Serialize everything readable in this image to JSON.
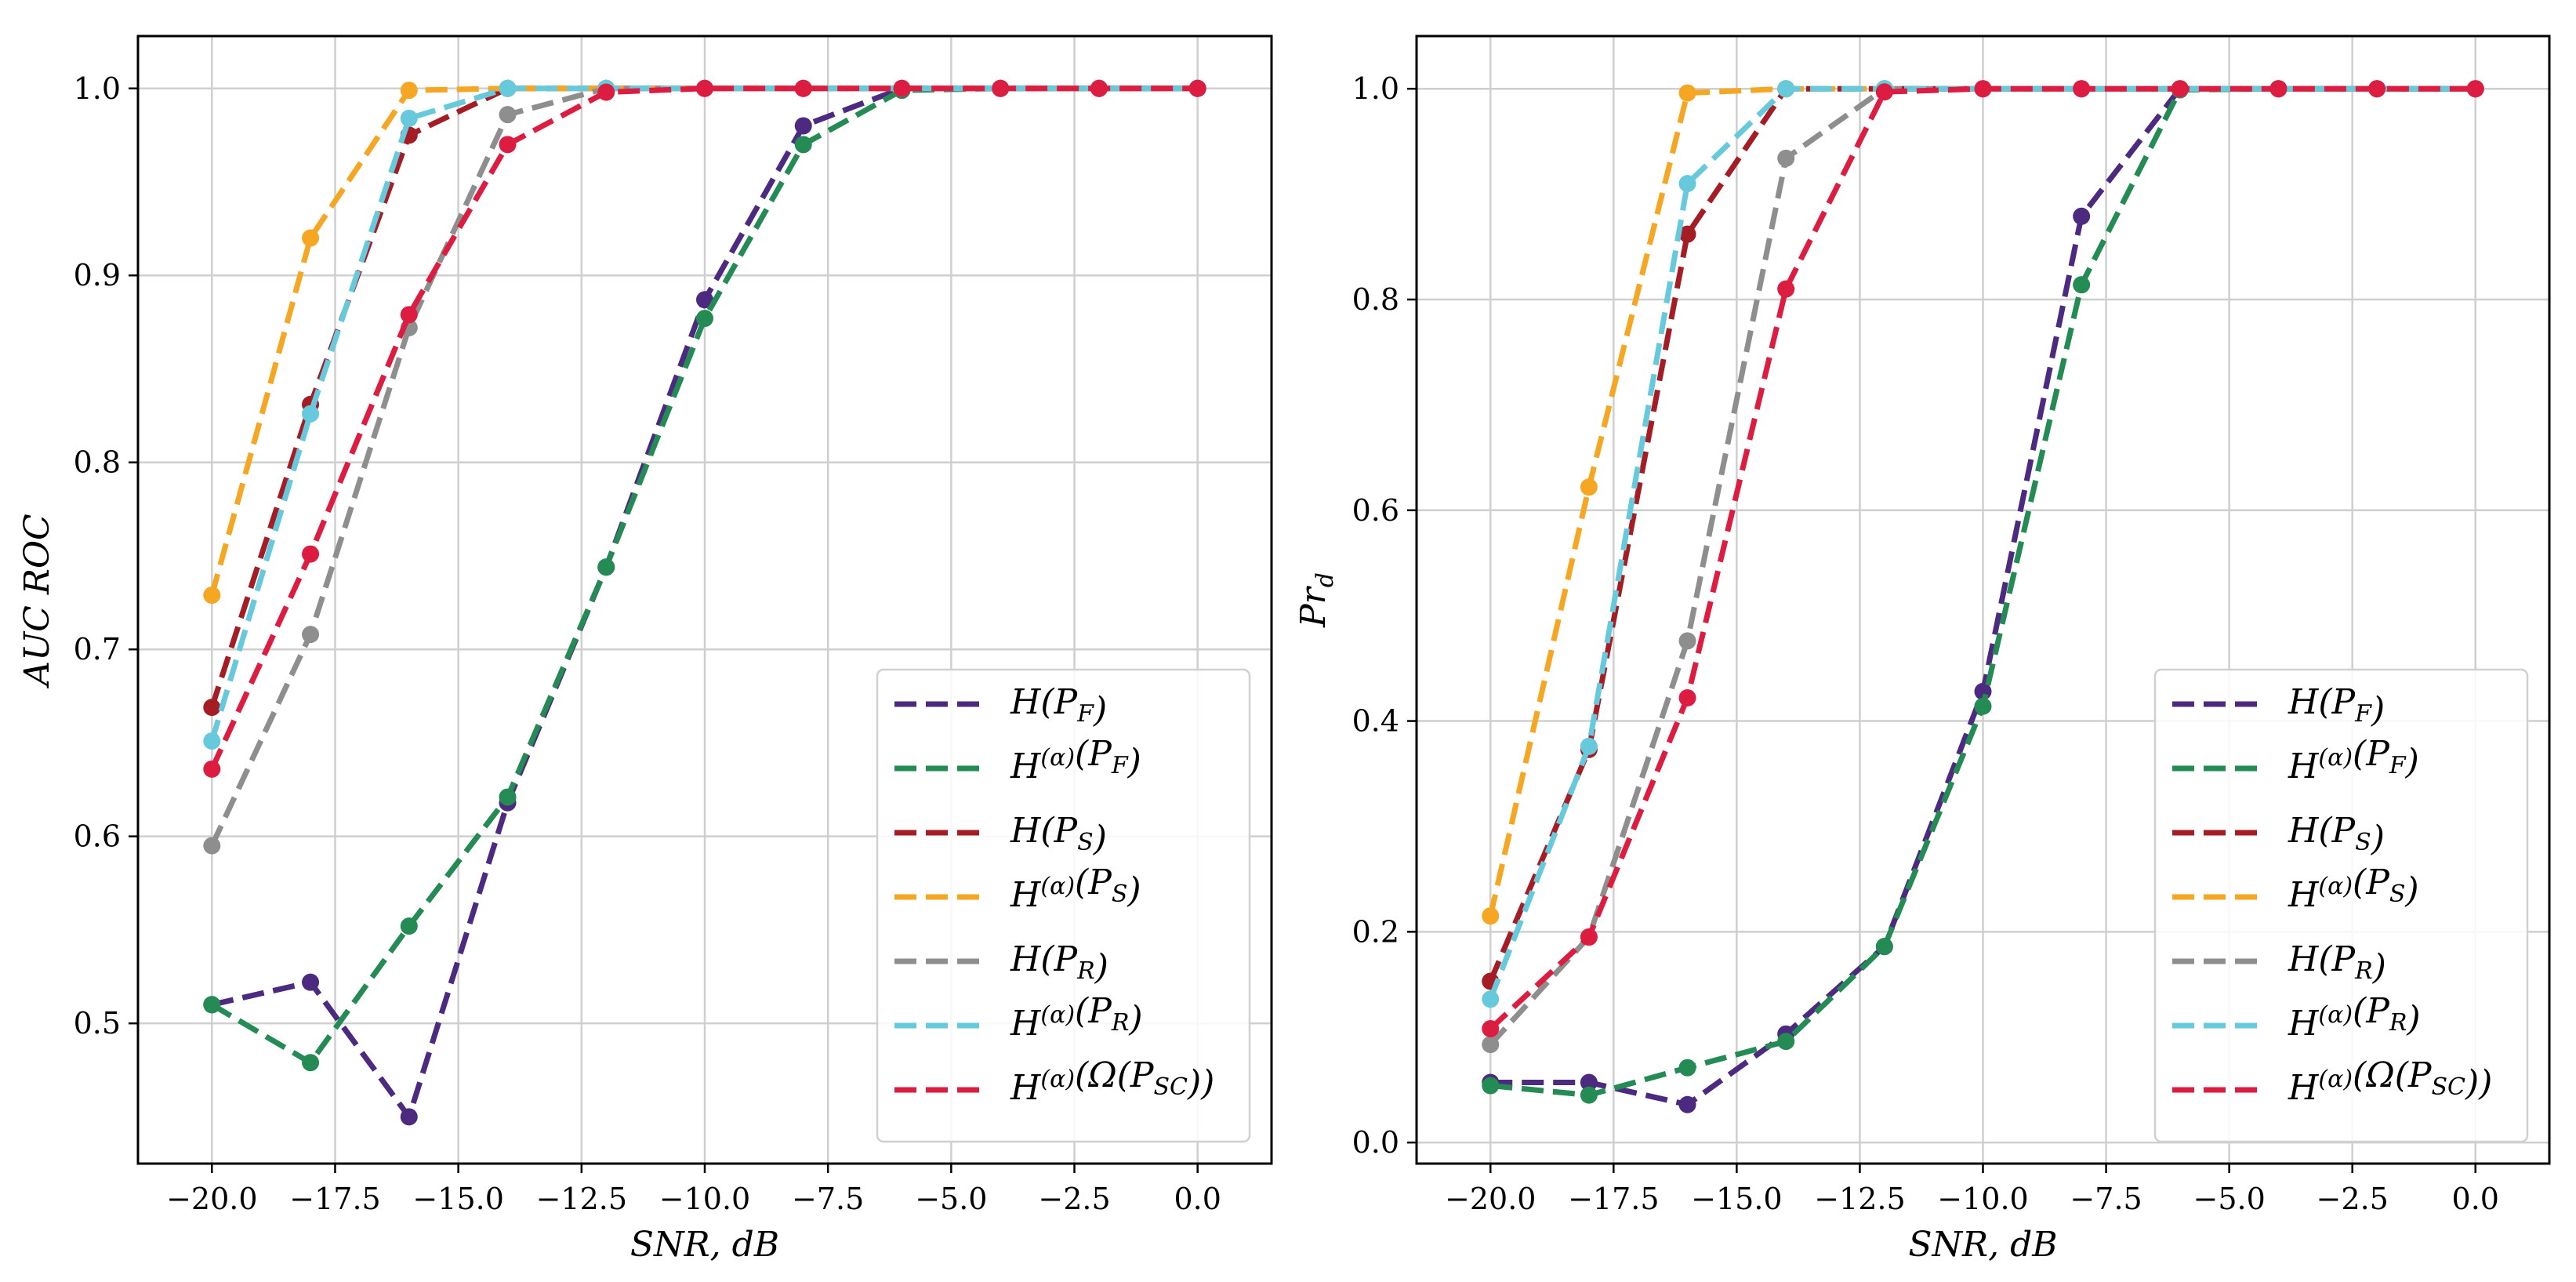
{
  "colors": {
    "H_PF": "#4b2a7f",
    "Ha_PF": "#238b53",
    "H_PS": "#a51d24",
    "Ha_PS": "#f5a623",
    "H_PR": "#8e8e8e",
    "Ha_PR": "#66c9dc",
    "Ha_Omega": "#dc1c40"
  },
  "legend_entries": [
    "H(P_F)",
    "H^(α)(P_F)",
    "H(P_S)",
    "H^(α)(P_S)",
    "H(P_R)",
    "H^(α)(P_R)",
    "H^(α)(Ω(P_SC))"
  ],
  "chart_data": [
    {
      "type": "line",
      "title": "",
      "xlabel": "SNR, dB",
      "ylabel": "AUC ROC",
      "xlim": [
        -21.5,
        1.5
      ],
      "ylim": [
        0.425,
        1.028
      ],
      "xticks": [
        -20.0,
        -17.5,
        -15.0,
        -12.5,
        -10.0,
        -7.5,
        -5.0,
        -2.5,
        0.0
      ],
      "xtick_labels": [
        "−20.0",
        "−17.5",
        "−15.0",
        "−12.5",
        "−10.0",
        "−7.5",
        "−5.0",
        "−2.5",
        "0.0"
      ],
      "yticks": [
        0.5,
        0.6,
        0.7,
        0.8,
        0.9,
        1.0
      ],
      "ytick_labels": [
        "0.5",
        "0.6",
        "0.7",
        "0.8",
        "0.9",
        "1.0"
      ],
      "grid": true,
      "legend_position": "lower-right",
      "x": [
        -20,
        -18,
        -16,
        -14,
        -12,
        -10,
        -8,
        -6,
        -4,
        -2,
        0
      ],
      "series": [
        {
          "name": "H(P_F)",
          "color_key": "H_PF",
          "values": [
            0.51,
            0.522,
            0.45,
            0.618,
            0.744,
            0.887,
            0.98,
            1.0,
            1.0,
            1.0,
            1.0
          ]
        },
        {
          "name": "H^(α)(P_F)",
          "color_key": "Ha_PF",
          "values": [
            0.51,
            0.479,
            0.552,
            0.621,
            0.744,
            0.877,
            0.97,
            0.999,
            1.0,
            1.0,
            1.0
          ]
        },
        {
          "name": "H(P_S)",
          "color_key": "H_PS",
          "values": [
            0.669,
            0.831,
            0.975,
            1.0,
            1.0,
            1.0,
            1.0,
            1.0,
            1.0,
            1.0,
            1.0
          ]
        },
        {
          "name": "H^(α)(P_S)",
          "color_key": "Ha_PS",
          "values": [
            0.729,
            0.92,
            0.999,
            1.0,
            1.0,
            1.0,
            1.0,
            1.0,
            1.0,
            1.0,
            1.0
          ]
        },
        {
          "name": "H(P_R)",
          "color_key": "H_PR",
          "values": [
            0.595,
            0.708,
            0.872,
            0.986,
            1.0,
            1.0,
            1.0,
            1.0,
            1.0,
            1.0,
            1.0
          ]
        },
        {
          "name": "H^(α)(P_R)",
          "color_key": "Ha_PR",
          "values": [
            0.651,
            0.826,
            0.984,
            1.0,
            1.0,
            1.0,
            1.0,
            1.0,
            1.0,
            1.0,
            1.0
          ]
        },
        {
          "name": "H^(α)(Ω(P_SC))",
          "color_key": "Ha_Omega",
          "values": [
            0.636,
            0.751,
            0.879,
            0.97,
            0.998,
            1.0,
            1.0,
            1.0,
            1.0,
            1.0,
            1.0
          ]
        }
      ]
    },
    {
      "type": "line",
      "title": "",
      "xlabel": "SNR, dB",
      "ylabel": "Pr_d",
      "xlim": [
        -21.5,
        1.5
      ],
      "ylim": [
        -0.02,
        1.05
      ],
      "xticks": [
        -20.0,
        -17.5,
        -15.0,
        -12.5,
        -10.0,
        -7.5,
        -5.0,
        -2.5,
        0.0
      ],
      "xtick_labels": [
        "−20.0",
        "−17.5",
        "−15.0",
        "−12.5",
        "−10.0",
        "−7.5",
        "−5.0",
        "−2.5",
        "0.0"
      ],
      "yticks": [
        0.0,
        0.2,
        0.4,
        0.6,
        0.8,
        1.0
      ],
      "ytick_labels": [
        "0.0",
        "0.2",
        "0.4",
        "0.6",
        "0.8",
        "1.0"
      ],
      "grid": true,
      "legend_position": "lower-right",
      "x": [
        -20,
        -18,
        -16,
        -14,
        -12,
        -10,
        -8,
        -6,
        -4,
        -2,
        0
      ],
      "series": [
        {
          "name": "H(P_F)",
          "color_key": "H_PF",
          "values": [
            0.057,
            0.057,
            0.036,
            0.103,
            0.186,
            0.428,
            0.879,
            1.0,
            1.0,
            1.0,
            1.0
          ]
        },
        {
          "name": "H^(α)(P_F)",
          "color_key": "Ha_PF",
          "values": [
            0.054,
            0.045,
            0.071,
            0.096,
            0.186,
            0.414,
            0.814,
            0.999,
            1.0,
            1.0,
            1.0
          ]
        },
        {
          "name": "H(P_S)",
          "color_key": "H_PS",
          "values": [
            0.153,
            0.373,
            0.862,
            1.0,
            1.0,
            1.0,
            1.0,
            1.0,
            1.0,
            1.0,
            1.0
          ]
        },
        {
          "name": "H^(α)(P_S)",
          "color_key": "Ha_PS",
          "values": [
            0.215,
            0.622,
            0.996,
            1.0,
            1.0,
            1.0,
            1.0,
            1.0,
            1.0,
            1.0,
            1.0
          ]
        },
        {
          "name": "H(P_R)",
          "color_key": "H_PR",
          "values": [
            0.093,
            0.195,
            0.476,
            0.934,
            1.0,
            1.0,
            1.0,
            1.0,
            1.0,
            1.0,
            1.0
          ]
        },
        {
          "name": "H^(α)(P_R)",
          "color_key": "Ha_PR",
          "values": [
            0.136,
            0.376,
            0.91,
            1.0,
            1.0,
            1.0,
            1.0,
            1.0,
            1.0,
            1.0,
            1.0
          ]
        },
        {
          "name": "H^(α)(Ω(P_SC))",
          "color_key": "Ha_Omega",
          "values": [
            0.108,
            0.195,
            0.422,
            0.81,
            0.997,
            1.0,
            1.0,
            1.0,
            1.0,
            1.0,
            1.0
          ]
        }
      ]
    }
  ]
}
